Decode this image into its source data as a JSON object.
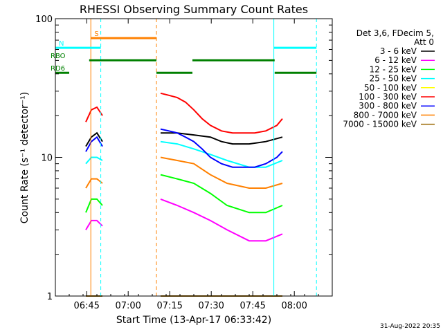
{
  "chart_data": {
    "type": "line",
    "title": "RHESSI Observing Summary Count Rates",
    "xlabel": "Start Time (13-Apr-17 06:33:42)",
    "ylabel": "Count Rate (s⁻¹ detector⁻¹)",
    "yscale": "log",
    "ylim": [
      1,
      100
    ],
    "xlim_minutes": [
      0,
      100
    ],
    "x_ticks": [
      {
        "label": "06:45",
        "minute": 11.3
      },
      {
        "label": "07:00",
        "minute": 26.3
      },
      {
        "label": "07:15",
        "minute": 41.3
      },
      {
        "label": "07:30",
        "minute": 56.3
      },
      {
        "label": "07:45",
        "minute": 71.3
      },
      {
        "label": "08:00",
        "minute": 86.3
      }
    ],
    "y_ticks": [
      {
        "label": "1",
        "value": 1
      },
      {
        "label": "10",
        "value": 10
      },
      {
        "label": "100",
        "value": 100
      }
    ],
    "legend": {
      "placement": "right",
      "header": [
        "Det 3,6, FDecim 5,",
        "Att 0"
      ]
    },
    "series": [
      {
        "name": "3 - 6 keV",
        "color": "#000000",
        "segments": [
          {
            "minute": [
              11,
              13,
              15,
              17
            ],
            "value": [
              12,
              14,
              15,
              13
            ]
          },
          {
            "minute": [
              38,
              44,
              50,
              56,
              60,
              64,
              70,
              76,
              82
            ],
            "value": [
              15,
              15,
              14.5,
              14,
              13,
              12.5,
              12.5,
              13,
              14
            ]
          }
        ]
      },
      {
        "name": "6 - 12 keV",
        "color": "#ff00ff",
        "segments": [
          {
            "minute": [
              11,
              13,
              15,
              17
            ],
            "value": [
              3,
              3.5,
              3.5,
              3.2
            ]
          },
          {
            "minute": [
              38,
              44,
              50,
              56,
              62,
              70,
              76,
              82
            ],
            "value": [
              5,
              4.5,
              4,
              3.5,
              3,
              2.5,
              2.5,
              2.8
            ]
          }
        ]
      },
      {
        "name": "12 - 25 keV",
        "color": "#00ff00",
        "segments": [
          {
            "minute": [
              11,
              13,
              15,
              17
            ],
            "value": [
              4,
              5,
              5,
              4.5
            ]
          },
          {
            "minute": [
              38,
              44,
              50,
              56,
              62,
              70,
              76,
              82
            ],
            "value": [
              7.5,
              7,
              6.5,
              5.5,
              4.5,
              4,
              4,
              4.5
            ]
          }
        ]
      },
      {
        "name": "25 - 50 keV",
        "color": "#00ffff",
        "segments": [
          {
            "minute": [
              11,
              13,
              15,
              17
            ],
            "value": [
              9,
              10,
              10,
              9.5
            ]
          },
          {
            "minute": [
              38,
              44,
              50,
              56,
              62,
              70,
              76,
              82
            ],
            "value": [
              13,
              12.5,
              11.5,
              10.5,
              9.5,
              8.5,
              8.5,
              9.5
            ]
          }
        ]
      },
      {
        "name": "50 - 100 keV",
        "color": "#ffff00",
        "segments": []
      },
      {
        "name": "100 - 300 keV",
        "color": "#ff0000",
        "segments": [
          {
            "minute": [
              11,
              13,
              15,
              17
            ],
            "value": [
              18,
              22,
              23,
              20
            ]
          },
          {
            "minute": [
              38,
              41,
              44,
              47,
              50,
              53,
              56,
              60,
              64,
              68,
              72,
              76,
              80,
              82
            ],
            "value": [
              29,
              28,
              27,
              25,
              22,
              19,
              17,
              15.5,
              15,
              15,
              15,
              15.5,
              17,
              19
            ]
          }
        ]
      },
      {
        "name": "300 - 800 keV",
        "color": "#0000ff",
        "segments": [
          {
            "minute": [
              11,
              13,
              15,
              17
            ],
            "value": [
              11,
              13,
              14,
              12
            ]
          },
          {
            "minute": [
              38,
              41,
              44,
              47,
              50,
              53,
              56,
              60,
              64,
              68,
              72,
              76,
              80,
              82
            ],
            "value": [
              16,
              15.5,
              15,
              14,
              13,
              11.5,
              10,
              9,
              8.5,
              8.5,
              8.5,
              9,
              10,
              11
            ]
          }
        ]
      },
      {
        "name": "800 - 7000 keV",
        "color": "#ff8000",
        "segments": [
          {
            "minute": [
              11,
              13,
              15,
              17
            ],
            "value": [
              6,
              7,
              7,
              6.5
            ]
          },
          {
            "minute": [
              38,
              44,
              50,
              56,
              62,
              70,
              76,
              82
            ],
            "value": [
              10,
              9.5,
              9,
              7.5,
              6.5,
              6,
              6,
              6.5
            ]
          }
        ]
      },
      {
        "name": "7000 - 15000 keV",
        "color": "#996600",
        "segments": [
          {
            "minute": [
              11,
              13,
              15,
              17
            ],
            "value": [
              1,
              1,
              1,
              1
            ]
          },
          {
            "minute": [
              38,
              60,
              82
            ],
            "value": [
              1,
              1,
              1
            ]
          }
        ]
      }
    ],
    "annotations": {
      "bars": [
        {
          "label": "S",
          "color": "#ff8000",
          "y_frac": 0.07,
          "start_minute": 12.8,
          "end_minute": 36.5
        },
        {
          "label": "N",
          "color": "#00ffff",
          "y_frac": 0.105,
          "start_minute": 0,
          "end_minute": 16.4
        },
        {
          "label": "",
          "color": "#00ffff",
          "y_frac": 0.105,
          "start_minute": 78.9,
          "end_minute": 94.3
        },
        {
          "label": "RBO",
          "color": "#008000",
          "y_frac": 0.15,
          "start_minute": 12.2,
          "end_minute": 36.5
        },
        {
          "label": "",
          "color": "#008000",
          "y_frac": 0.15,
          "start_minute": 49.5,
          "end_minute": 79.2
        },
        {
          "label": "RD6",
          "color": "#008000",
          "y_frac": 0.195,
          "start_minute": 0,
          "end_minute": 5
        },
        {
          "label": "",
          "color": "#008000",
          "y_frac": 0.195,
          "start_minute": 36.5,
          "end_minute": 49.5
        },
        {
          "label": "",
          "color": "#008000",
          "y_frac": 0.195,
          "start_minute": 79.2,
          "end_minute": 94.3
        }
      ],
      "vlines": [
        {
          "minute": 0,
          "color": "#00ffff",
          "dash": false
        },
        {
          "minute": 12.8,
          "color": "#ff8000",
          "dash": false
        },
        {
          "minute": 16.4,
          "color": "#00ffff",
          "dash": true
        },
        {
          "minute": 36.5,
          "color": "#ff8000",
          "dash": true
        },
        {
          "minute": 78.9,
          "color": "#00ffff",
          "dash": false
        },
        {
          "minute": 94.3,
          "color": "#00ffff",
          "dash": true
        }
      ]
    },
    "footer_timestamp": "31-Aug-2022 20:35"
  }
}
